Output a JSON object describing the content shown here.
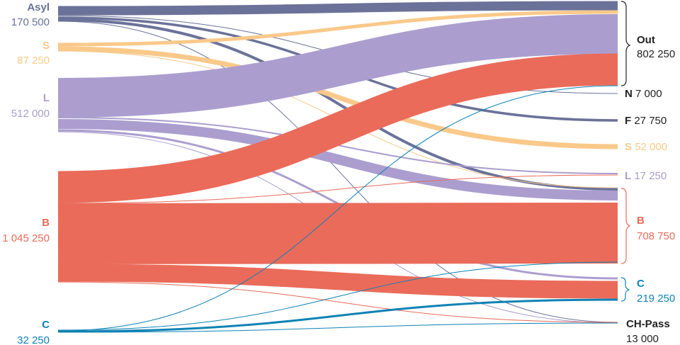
{
  "colors": {
    "asyl": "#6b7299",
    "s": "#f9c98a",
    "l": "#ab9ecf",
    "b": "#ea6b5a",
    "c": "#0e82b4",
    "dark": "#222222"
  },
  "sources": [
    {
      "id": "asyl",
      "name": "Asyl",
      "value": "170 500"
    },
    {
      "id": "s",
      "name": "S",
      "value": "87 250"
    },
    {
      "id": "l",
      "name": "L",
      "value": "512 000"
    },
    {
      "id": "b",
      "name": "B",
      "value": "1 045 250"
    },
    {
      "id": "c",
      "name": "C",
      "value": "32 250"
    }
  ],
  "targets": [
    {
      "id": "out",
      "name": "Out",
      "value": "802 250"
    },
    {
      "id": "n",
      "name": "N",
      "value": "7 000"
    },
    {
      "id": "f",
      "name": "F",
      "value": "27 750"
    },
    {
      "id": "s",
      "name": "S",
      "value": "52 000"
    },
    {
      "id": "l",
      "name": "L",
      "value": "17 250"
    },
    {
      "id": "b",
      "name": "B",
      "value": "708 750"
    },
    {
      "id": "c",
      "name": "C",
      "value": "219 250"
    },
    {
      "id": "chpass",
      "name": "CH-Pass",
      "value": "13 000"
    }
  ]
}
